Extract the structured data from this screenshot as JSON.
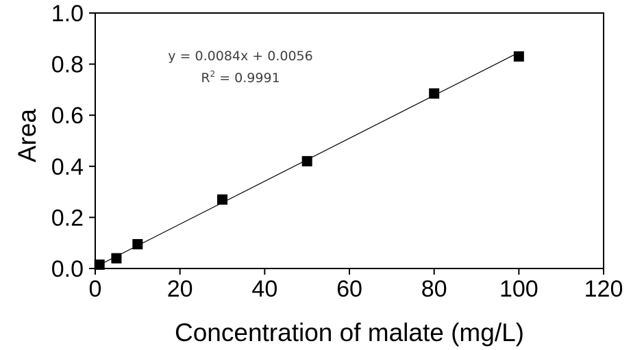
{
  "chart_data": {
    "type": "scatter",
    "title": "",
    "xlabel": "Concentration of malate (mg/L)",
    "ylabel": "Area",
    "xlim": [
      0,
      120
    ],
    "ylim": [
      0,
      1.0
    ],
    "x_ticks": [
      "0",
      "20",
      "40",
      "60",
      "80",
      "100",
      "120"
    ],
    "y_ticks": [
      "0.0",
      "0.2",
      "0.4",
      "0.6",
      "0.8",
      "1.0"
    ],
    "x": [
      1,
      5,
      10,
      30,
      50,
      80,
      100
    ],
    "values": [
      0.015,
      0.04,
      0.095,
      0.27,
      0.42,
      0.685,
      0.83
    ],
    "marker": "square",
    "marker_color": "#000000",
    "fit": {
      "type": "linear",
      "slope": 0.0084,
      "intercept": 0.0056,
      "x_range": [
        0,
        100
      ],
      "color": "#000000"
    },
    "annotations": {
      "equation": "y = 0.0084x + 0.0056",
      "r2_base": "R",
      "r2_sup": "2",
      "r2_value": " = 0.9991"
    },
    "grid": false,
    "legend": "none"
  }
}
